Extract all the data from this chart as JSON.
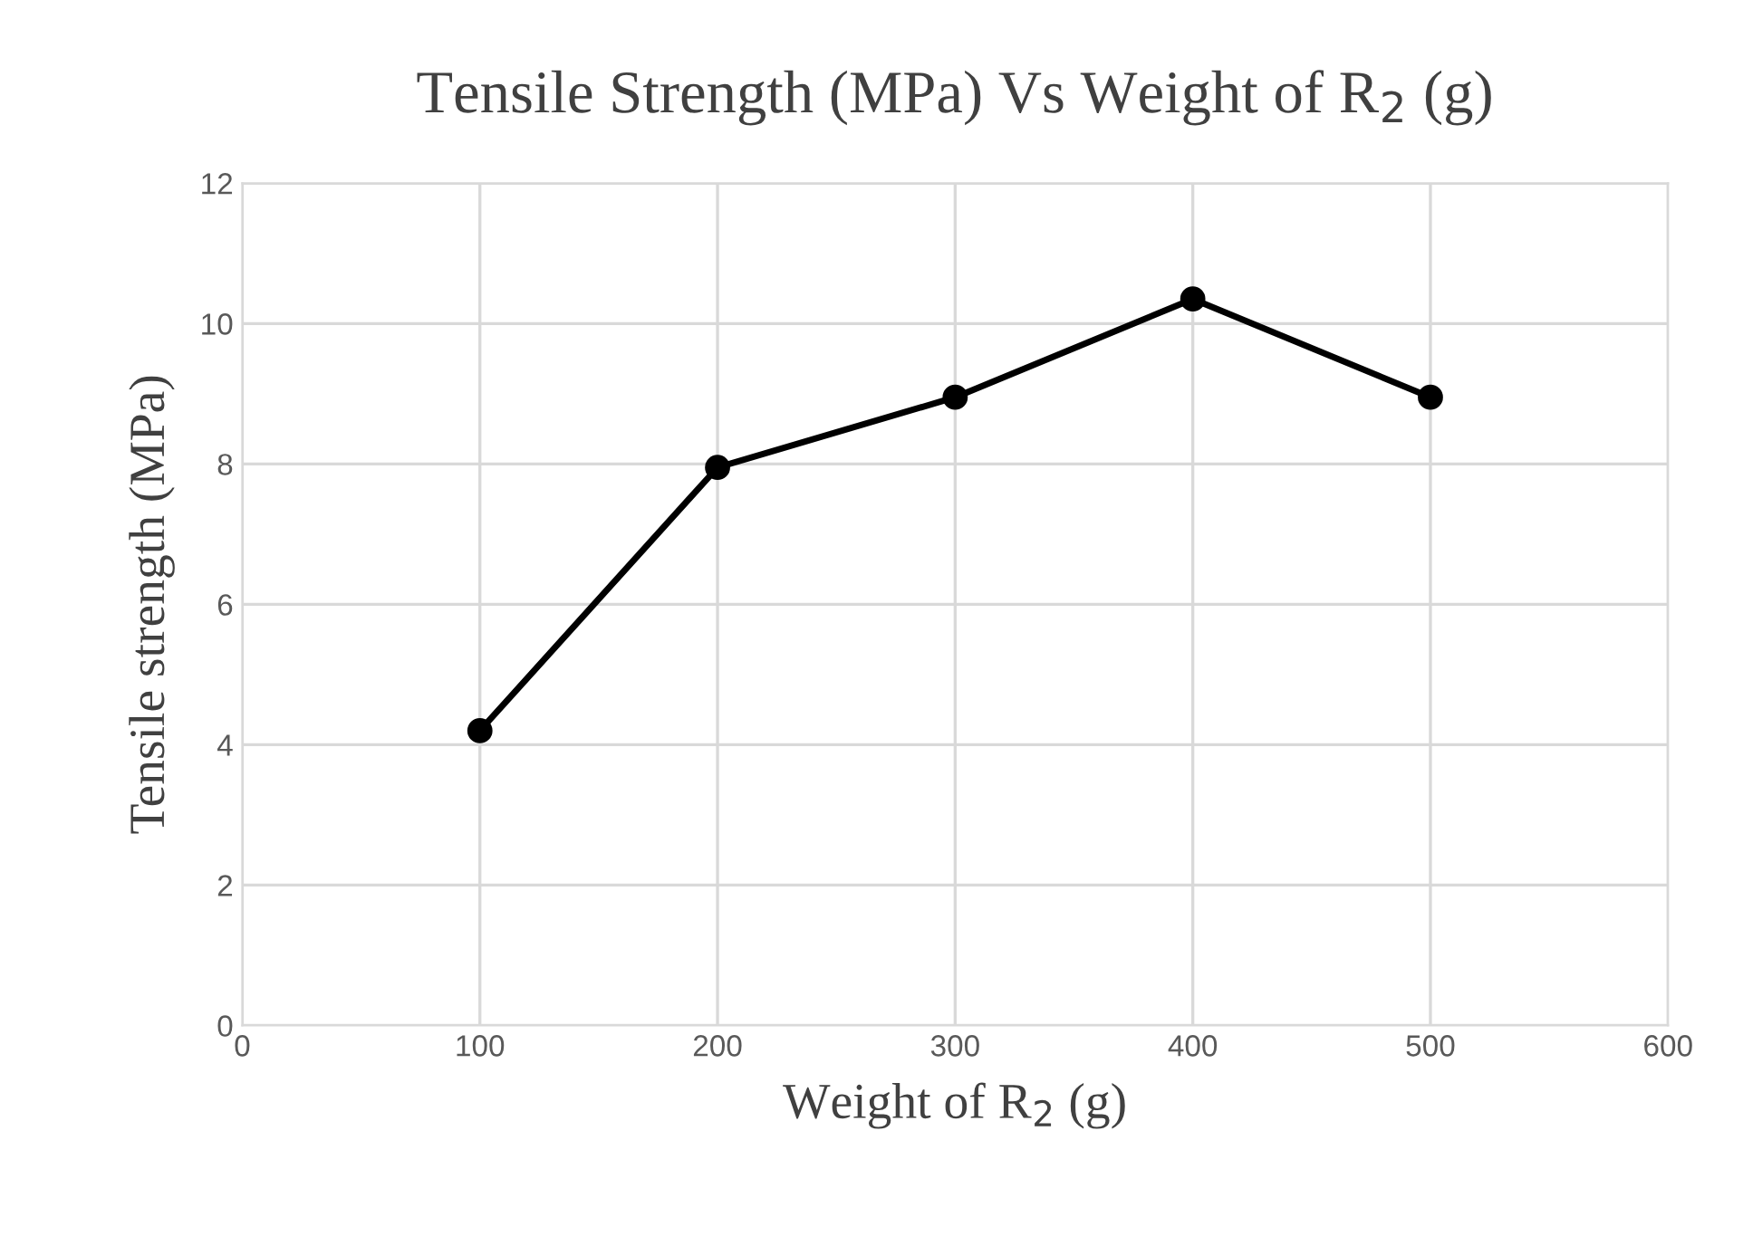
{
  "chart_data": {
    "type": "line",
    "title": "Tensile Strength (MPa) Vs Weight of R$_{2}$ (g)",
    "xlabel": "Weight of R$_{2}$ (g)",
    "ylabel": "Tensile strength (MPa)",
    "x": [
      100,
      200,
      300,
      400,
      500
    ],
    "series": [
      {
        "color": "#000000",
        "values": [
          4.2,
          7.95,
          8.95,
          10.35,
          8.95
        ]
      }
    ],
    "xlim": [
      0,
      600
    ],
    "xticks": [
      0,
      100,
      200,
      300,
      400,
      500,
      600
    ],
    "ylim": [
      0,
      12
    ],
    "yticks": [
      0,
      2,
      4,
      6,
      8,
      10,
      12
    ],
    "grid": true,
    "marker": "circle",
    "line_style": "solid"
  }
}
